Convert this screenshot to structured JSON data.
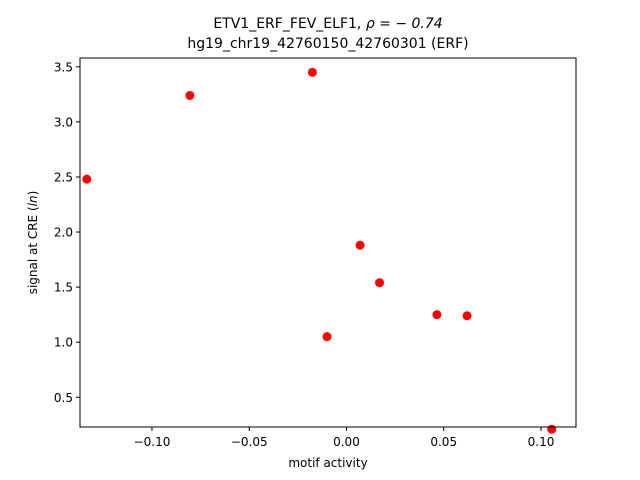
{
  "chart_data": {
    "type": "scatter",
    "title_line1_prefix": "ETV1_ERF_FEV_ELF1, ",
    "title_line1_rho": "ρ = − 0.74",
    "title_line2": "hg19_chr19_42760150_42760301 (ERF)",
    "xlabel": "motif activity",
    "ylabel_prefix": "signal at CRE (",
    "ylabel_italic": "ln",
    "ylabel_suffix": ")",
    "xlim": [
      -0.137,
      0.118
    ],
    "ylim": [
      0.23,
      3.58
    ],
    "xticks": [
      -0.1,
      -0.05,
      0.0,
      0.05,
      0.1
    ],
    "xtick_labels": [
      "−0.10",
      "−0.05",
      "0.00",
      "0.05",
      "0.10"
    ],
    "yticks": [
      0.5,
      1.0,
      1.5,
      2.0,
      2.5,
      3.0,
      3.5
    ],
    "ytick_labels": [
      "0.5",
      "1.0",
      "1.5",
      "2.0",
      "2.5",
      "3.0",
      "3.5"
    ],
    "marker_color": "#ff0000",
    "points": [
      {
        "x": -0.1335,
        "y": 2.48
      },
      {
        "x": -0.0805,
        "y": 3.24
      },
      {
        "x": -0.0175,
        "y": 3.45
      },
      {
        "x": -0.01,
        "y": 1.05
      },
      {
        "x": 0.007,
        "y": 1.88
      },
      {
        "x": 0.017,
        "y": 1.54
      },
      {
        "x": 0.0465,
        "y": 1.25
      },
      {
        "x": 0.062,
        "y": 1.24
      },
      {
        "x": 0.1055,
        "y": 0.21
      }
    ]
  }
}
